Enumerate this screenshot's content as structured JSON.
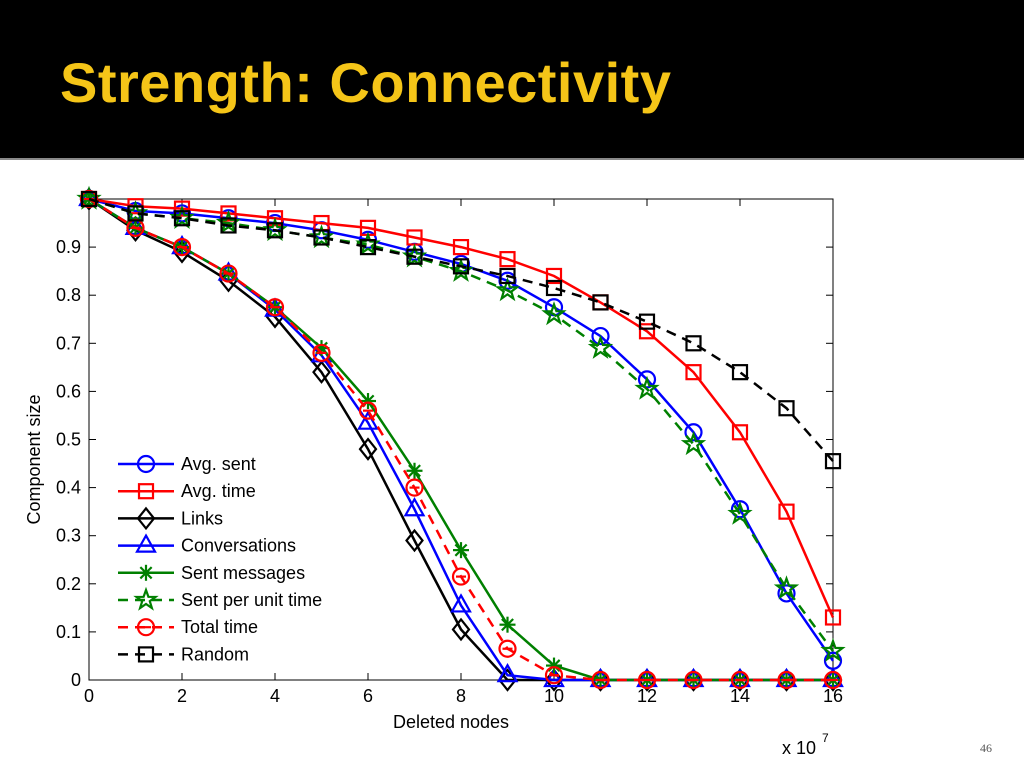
{
  "slide": {
    "title": "Strength: Connectivity",
    "page_number": "46"
  },
  "colors": {
    "background": "#000000",
    "title": "#F5C518",
    "blue": "#0000FF",
    "red": "#FF0000",
    "black": "#000000",
    "green": "#008000"
  },
  "chart_data": {
    "type": "line",
    "title": "",
    "xlabel": "Deleted nodes",
    "ylabel": "Component size",
    "x_multiplier": "x 10",
    "x_multiplier_exp": "7",
    "xlim": [
      0,
      16
    ],
    "ylim": [
      0,
      1
    ],
    "x_ticks": [
      0,
      2,
      4,
      6,
      8,
      10,
      12,
      14,
      16
    ],
    "y_ticks": [
      0,
      0.1,
      0.2,
      0.3,
      0.4,
      0.5,
      0.6,
      0.7,
      0.8,
      0.9
    ],
    "y_tick_labels": [
      "0",
      "0.1",
      "0.2",
      "0.3",
      "0.4",
      "0.5",
      "0.6",
      "0.7",
      "0.8",
      "0.9"
    ],
    "x_tick_labels": [
      "0",
      "2",
      "4",
      "6",
      "8",
      "10",
      "12",
      "14",
      "16"
    ],
    "grid": false,
    "legend_position": "bottom-left",
    "x": [
      0,
      1,
      2,
      3,
      4,
      5,
      6,
      7,
      8,
      9,
      10,
      11,
      12,
      13,
      14,
      15,
      16
    ],
    "series": [
      {
        "name": "Avg. sent",
        "color": "#0000FF",
        "dash": "solid",
        "marker": "circle",
        "values": [
          1.0,
          0.975,
          0.97,
          0.96,
          0.95,
          0.935,
          0.915,
          0.89,
          0.865,
          0.83,
          0.775,
          0.715,
          0.625,
          0.515,
          0.355,
          0.18,
          0.04
        ]
      },
      {
        "name": "Avg. time",
        "color": "#FF0000",
        "dash": "solid",
        "marker": "square",
        "values": [
          1.0,
          0.985,
          0.98,
          0.97,
          0.96,
          0.95,
          0.94,
          0.92,
          0.9,
          0.875,
          0.84,
          0.785,
          0.725,
          0.64,
          0.515,
          0.35,
          0.13
        ]
      },
      {
        "name": "Links",
        "color": "#000000",
        "dash": "solid",
        "marker": "diamond",
        "values": [
          1.0,
          0.935,
          0.89,
          0.83,
          0.755,
          0.64,
          0.48,
          0.29,
          0.105,
          0.0,
          0.0,
          0.0,
          0.0,
          0.0,
          0.0,
          0.0,
          0.0
        ]
      },
      {
        "name": "Conversations",
        "color": "#0000FF",
        "dash": "solid",
        "marker": "triangle",
        "values": [
          1.0,
          0.94,
          0.9,
          0.845,
          0.77,
          0.675,
          0.535,
          0.355,
          0.155,
          0.01,
          0.0,
          0.0,
          0.0,
          0.0,
          0.0,
          0.0,
          0.0
        ]
      },
      {
        "name": "Sent messages",
        "color": "#008000",
        "dash": "solid",
        "marker": "asterisk",
        "values": [
          1.0,
          0.94,
          0.9,
          0.845,
          0.775,
          0.69,
          0.58,
          0.435,
          0.27,
          0.115,
          0.03,
          0.0,
          0.0,
          0.0,
          0.0,
          0.0,
          0.0
        ]
      },
      {
        "name": "Sent per unit time",
        "color": "#008000",
        "dash": "dashed",
        "marker": "star",
        "values": [
          1.0,
          0.97,
          0.96,
          0.95,
          0.935,
          0.92,
          0.905,
          0.88,
          0.85,
          0.81,
          0.76,
          0.69,
          0.605,
          0.49,
          0.345,
          0.19,
          0.06
        ]
      },
      {
        "name": "Total time",
        "color": "#FF0000",
        "dash": "dashed",
        "marker": "circle-minus",
        "values": [
          1.0,
          0.94,
          0.9,
          0.845,
          0.775,
          0.68,
          0.56,
          0.4,
          0.215,
          0.065,
          0.01,
          0.0,
          0.0,
          0.0,
          0.0,
          0.0,
          0.0
        ]
      },
      {
        "name": "Random",
        "color": "#000000",
        "dash": "dashed",
        "marker": "square",
        "values": [
          1.0,
          0.97,
          0.96,
          0.945,
          0.935,
          0.92,
          0.9,
          0.88,
          0.86,
          0.84,
          0.815,
          0.785,
          0.745,
          0.7,
          0.64,
          0.565,
          0.455
        ]
      }
    ]
  }
}
